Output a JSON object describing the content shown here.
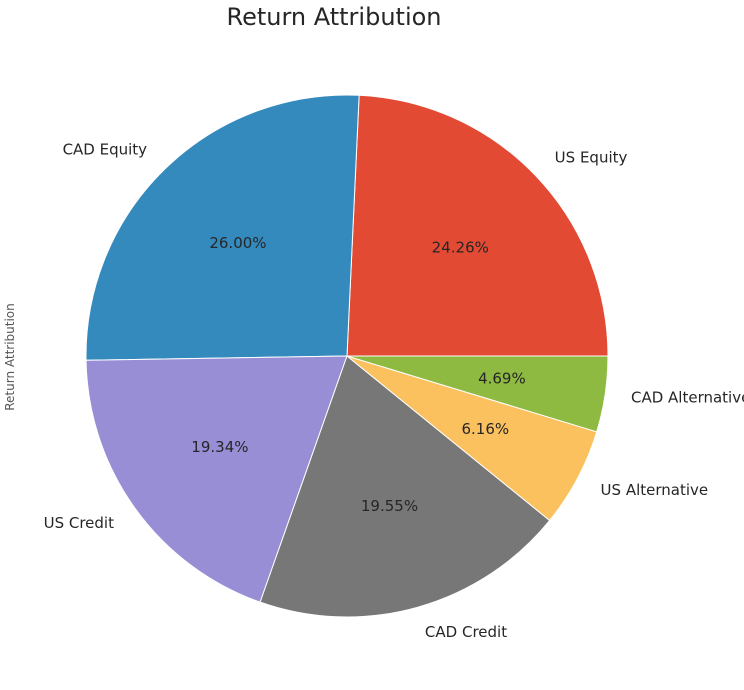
{
  "chart_data": {
    "type": "pie",
    "title": "Return Attribution",
    "ylabel": "Return Attribution",
    "slices": [
      {
        "label": "US Equity",
        "value": 24.26,
        "pct_label": "24.26%",
        "color": "#E24A33"
      },
      {
        "label": "CAD Equity",
        "value": 26.0,
        "pct_label": "26.00%",
        "color": "#348ABD"
      },
      {
        "label": "US Credit",
        "value": 19.34,
        "pct_label": "19.34%",
        "color": "#988ED5"
      },
      {
        "label": "CAD Credit",
        "value": 19.55,
        "pct_label": "19.55%",
        "color": "#777777"
      },
      {
        "label": "US Alternative",
        "value": 6.16,
        "pct_label": "6.16%",
        "color": "#FBC15E"
      },
      {
        "label": "CAD Alternative",
        "value": 4.69,
        "pct_label": "4.69%",
        "color": "#8EBA42"
      }
    ],
    "start_angle_deg": 0,
    "direction": "counterclockwise",
    "legend": false
  }
}
